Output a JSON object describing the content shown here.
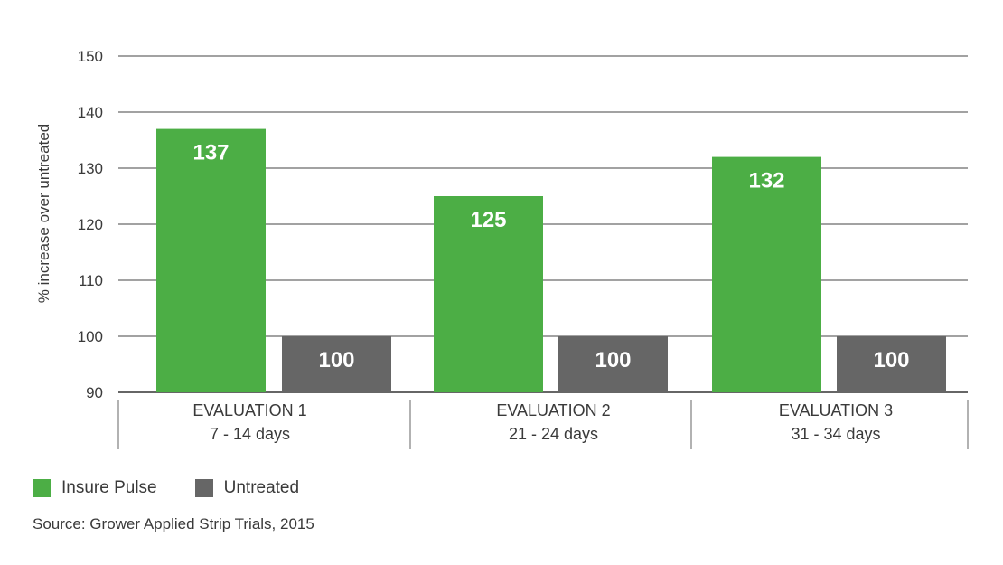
{
  "chart_data": {
    "type": "bar",
    "categories": [
      {
        "title": "EVALUATION 1",
        "subtitle": "7 - 14 days"
      },
      {
        "title": "EVALUATION 2",
        "subtitle": "21 - 24 days"
      },
      {
        "title": "EVALUATION 3",
        "subtitle": "31 - 34 days"
      }
    ],
    "series": [
      {
        "name": "Insure Pulse",
        "color": "#4cae45",
        "values": [
          137,
          125,
          132
        ]
      },
      {
        "name": "Untreated",
        "color": "#666666",
        "values": [
          100,
          100,
          100
        ]
      }
    ],
    "ylabel": "% increase over untreated",
    "ylim": [
      90,
      150
    ],
    "yticks": [
      90,
      100,
      110,
      120,
      130,
      140,
      150
    ],
    "grid": true,
    "legend_position": "bottom-left"
  },
  "source": "Source: Grower Applied Strip Trials, 2015"
}
